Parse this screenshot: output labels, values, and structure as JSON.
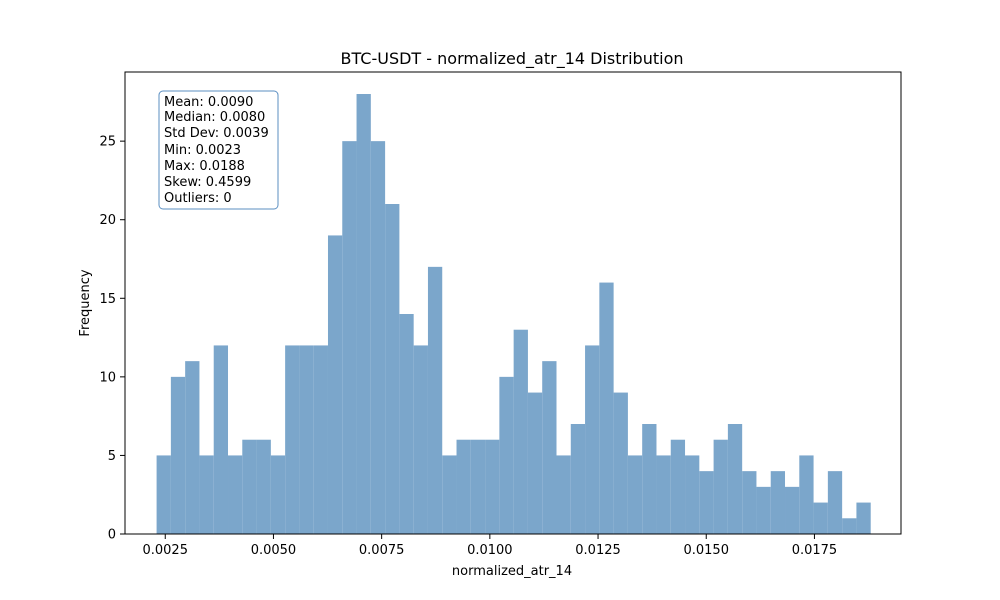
{
  "chart_data": {
    "type": "bar",
    "title": "BTC-USDT - normalized_atr_14 Distribution",
    "xlabel": "normalized_atr_14",
    "ylabel": "Frequency",
    "xlim": [
      0.00157,
      0.0195
    ],
    "ylim": [
      0,
      29.4
    ],
    "x_ticks": [
      {
        "value": 0.0025,
        "label": "0.0025"
      },
      {
        "value": 0.005,
        "label": "0.0050"
      },
      {
        "value": 0.0075,
        "label": "0.0075"
      },
      {
        "value": 0.01,
        "label": "0.0100"
      },
      {
        "value": 0.0125,
        "label": "0.0125"
      },
      {
        "value": 0.015,
        "label": "0.0150"
      },
      {
        "value": 0.0175,
        "label": "0.0175"
      }
    ],
    "y_ticks": [
      {
        "value": 0,
        "label": "0"
      },
      {
        "value": 5,
        "label": "5"
      },
      {
        "value": 10,
        "label": "10"
      },
      {
        "value": 15,
        "label": "15"
      },
      {
        "value": 20,
        "label": "20"
      },
      {
        "value": 25,
        "label": "25"
      }
    ],
    "bin_start": 0.0023,
    "bin_end": 0.0188,
    "counts": [
      5,
      10,
      11,
      5,
      12,
      5,
      6,
      6,
      5,
      12,
      12,
      12,
      19,
      25,
      28,
      25,
      21,
      14,
      12,
      17,
      5,
      6,
      6,
      6,
      10,
      13,
      9,
      11,
      5,
      7,
      12,
      16,
      9,
      5,
      7,
      5,
      6,
      5,
      4,
      6,
      7,
      4,
      3,
      4,
      3,
      5,
      2,
      4,
      1,
      2
    ],
    "stats": [
      "Mean: 0.0090",
      "Median: 0.0080",
      "Std Dev: 0.0039",
      "Min: 0.0023",
      "Max: 0.0188",
      "Skew: 0.4599",
      "Outliers: 0"
    ],
    "colors": {
      "bar": "#7ba6cb",
      "stats_border": "#5b8fc2",
      "axis": "#000000"
    }
  }
}
